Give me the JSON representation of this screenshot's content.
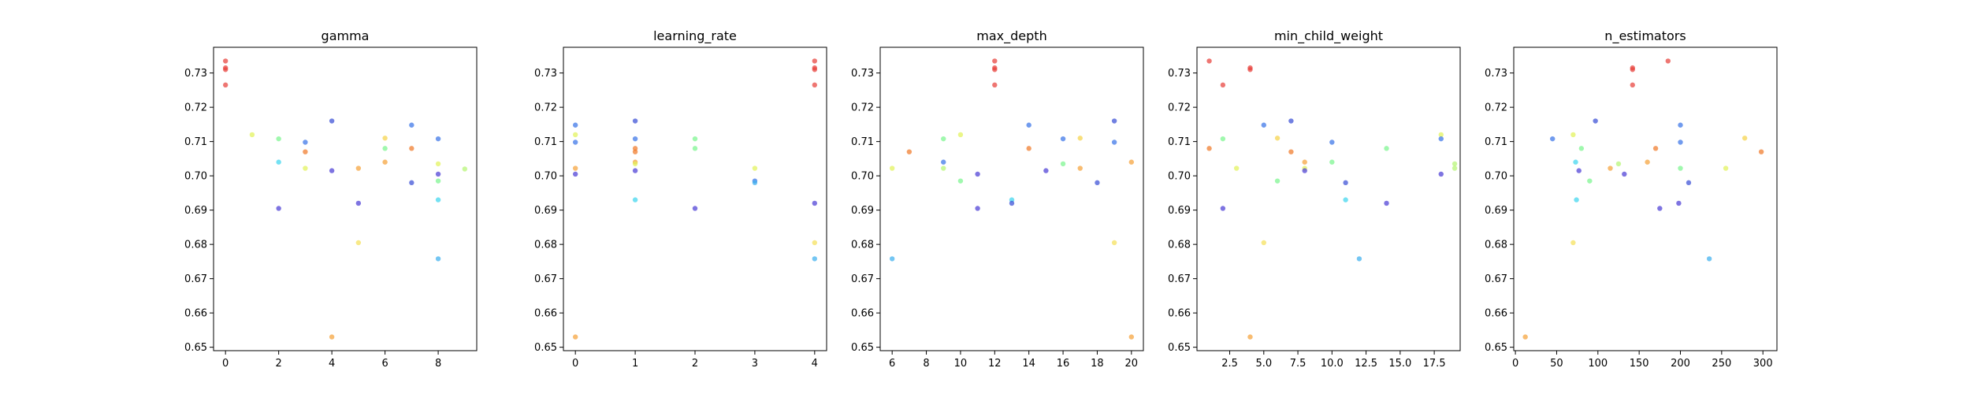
{
  "chart_data": [
    {
      "type": "scatter",
      "title": "gamma",
      "xlabel": "",
      "ylabel": "",
      "xlim": [
        -0.45,
        9.45
      ],
      "ylim": [
        0.649,
        0.7375
      ],
      "xticks": [
        0,
        2,
        4,
        6,
        8
      ],
      "xtick_labels": [
        "0",
        "2",
        "4",
        "6",
        "8"
      ],
      "yticks": [
        0.65,
        0.66,
        0.67,
        0.68,
        0.69,
        0.7,
        0.71,
        0.72,
        0.73
      ],
      "ytick_labels": [
        "0.65",
        "0.66",
        "0.67",
        "0.68",
        "0.69",
        "0.70",
        "0.71",
        "0.72",
        "0.73"
      ],
      "points": [
        {
          "x": 0,
          "y": 0.7335,
          "color": "#e8413c"
        },
        {
          "x": 0,
          "y": 0.7315,
          "color": "#e8413c"
        },
        {
          "x": 0,
          "y": 0.731,
          "color": "#e8413c"
        },
        {
          "x": 0,
          "y": 0.7265,
          "color": "#e8413c"
        },
        {
          "x": 1,
          "y": 0.712,
          "color": "#e2f35a"
        },
        {
          "x": 2,
          "y": 0.7108,
          "color": "#7cf58f"
        },
        {
          "x": 2,
          "y": 0.704,
          "color": "#3fd6ee"
        },
        {
          "x": 2,
          "y": 0.6905,
          "color": "#4c3fd6"
        },
        {
          "x": 3,
          "y": 0.7098,
          "color": "#3a74e8"
        },
        {
          "x": 3,
          "y": 0.707,
          "color": "#f07a2a"
        },
        {
          "x": 3,
          "y": 0.7022,
          "color": "#e2f35a"
        },
        {
          "x": 4,
          "y": 0.716,
          "color": "#3a4fd6"
        },
        {
          "x": 4,
          "y": 0.7015,
          "color": "#4c3fd6"
        },
        {
          "x": 4,
          "y": 0.653,
          "color": "#f5a23a"
        },
        {
          "x": 5,
          "y": 0.7022,
          "color": "#f5a23a"
        },
        {
          "x": 5,
          "y": 0.692,
          "color": "#4c3fd6"
        },
        {
          "x": 5,
          "y": 0.6805,
          "color": "#f5e05a"
        },
        {
          "x": 6,
          "y": 0.711,
          "color": "#f5d24a"
        },
        {
          "x": 6,
          "y": 0.708,
          "color": "#7cf58f"
        },
        {
          "x": 6,
          "y": 0.704,
          "color": "#f5a23a"
        },
        {
          "x": 7,
          "y": 0.7148,
          "color": "#3a74e8"
        },
        {
          "x": 7,
          "y": 0.708,
          "color": "#f07a2a"
        },
        {
          "x": 7,
          "y": 0.698,
          "color": "#3a4fd6"
        },
        {
          "x": 8,
          "y": 0.7108,
          "color": "#3a74e8"
        },
        {
          "x": 8,
          "y": 0.7035,
          "color": "#e2f35a"
        },
        {
          "x": 8,
          "y": 0.7005,
          "color": "#4c3fd6"
        },
        {
          "x": 8,
          "y": 0.6985,
          "color": "#7cf58f"
        },
        {
          "x": 8,
          "y": 0.693,
          "color": "#3fd6ee"
        },
        {
          "x": 8,
          "y": 0.6758,
          "color": "#3fb0ee"
        },
        {
          "x": 9,
          "y": 0.702,
          "color": "#b6f574"
        }
      ]
    },
    {
      "type": "scatter",
      "title": "learning_rate",
      "xlabel": "",
      "ylabel": "",
      "xlim": [
        -0.2,
        4.2
      ],
      "ylim": [
        0.649,
        0.7375
      ],
      "xticks": [
        0,
        1,
        2,
        3,
        4
      ],
      "xtick_labels": [
        "0",
        "1",
        "2",
        "3",
        "4"
      ],
      "yticks": [
        0.65,
        0.66,
        0.67,
        0.68,
        0.69,
        0.7,
        0.71,
        0.72,
        0.73
      ],
      "ytick_labels": [
        "0.65",
        "0.66",
        "0.67",
        "0.68",
        "0.69",
        "0.70",
        "0.71",
        "0.72",
        "0.73"
      ],
      "points": [
        {
          "x": 0,
          "y": 0.7148,
          "color": "#3a74e8"
        },
        {
          "x": 0,
          "y": 0.712,
          "color": "#e2f35a"
        },
        {
          "x": 0,
          "y": 0.7098,
          "color": "#3a74e8"
        },
        {
          "x": 0,
          "y": 0.7022,
          "color": "#f5a23a"
        },
        {
          "x": 0,
          "y": 0.7005,
          "color": "#4c3fd6"
        },
        {
          "x": 0,
          "y": 0.653,
          "color": "#f5a23a"
        },
        {
          "x": 1,
          "y": 0.716,
          "color": "#3a4fd6"
        },
        {
          "x": 1,
          "y": 0.7108,
          "color": "#3a74e8"
        },
        {
          "x": 1,
          "y": 0.708,
          "color": "#f07a2a"
        },
        {
          "x": 1,
          "y": 0.707,
          "color": "#f07a2a"
        },
        {
          "x": 1,
          "y": 0.704,
          "color": "#f5a23a"
        },
        {
          "x": 1,
          "y": 0.7035,
          "color": "#e2f35a"
        },
        {
          "x": 1,
          "y": 0.7015,
          "color": "#4c3fd6"
        },
        {
          "x": 1,
          "y": 0.693,
          "color": "#3fd6ee"
        },
        {
          "x": 2,
          "y": 0.7108,
          "color": "#7cf58f"
        },
        {
          "x": 2,
          "y": 0.708,
          "color": "#7cf58f"
        },
        {
          "x": 2,
          "y": 0.6905,
          "color": "#4c3fd6"
        },
        {
          "x": 3,
          "y": 0.7022,
          "color": "#e2f35a"
        },
        {
          "x": 3,
          "y": 0.6985,
          "color": "#3a74e8"
        },
        {
          "x": 3,
          "y": 0.698,
          "color": "#3fb0ee"
        },
        {
          "x": 4,
          "y": 0.7335,
          "color": "#e8413c"
        },
        {
          "x": 4,
          "y": 0.7315,
          "color": "#e8413c"
        },
        {
          "x": 4,
          "y": 0.731,
          "color": "#e8413c"
        },
        {
          "x": 4,
          "y": 0.7265,
          "color": "#e8413c"
        },
        {
          "x": 4,
          "y": 0.692,
          "color": "#4c3fd6"
        },
        {
          "x": 4,
          "y": 0.6805,
          "color": "#f5e05a"
        },
        {
          "x": 4,
          "y": 0.6758,
          "color": "#3fb0ee"
        }
      ]
    },
    {
      "type": "scatter",
      "title": "max_depth",
      "xlabel": "",
      "ylabel": "",
      "xlim": [
        5.3,
        20.7
      ],
      "ylim": [
        0.649,
        0.7375
      ],
      "xticks": [
        6,
        8,
        10,
        12,
        14,
        16,
        18,
        20
      ],
      "xtick_labels": [
        "6",
        "8",
        "10",
        "12",
        "14",
        "16",
        "18",
        "20"
      ],
      "yticks": [
        0.65,
        0.66,
        0.67,
        0.68,
        0.69,
        0.7,
        0.71,
        0.72,
        0.73
      ],
      "ytick_labels": [
        "0.65",
        "0.66",
        "0.67",
        "0.68",
        "0.69",
        "0.70",
        "0.71",
        "0.72",
        "0.73"
      ],
      "points": [
        {
          "x": 6,
          "y": 0.7022,
          "color": "#e2f35a"
        },
        {
          "x": 6,
          "y": 0.6758,
          "color": "#3fb0ee"
        },
        {
          "x": 7,
          "y": 0.707,
          "color": "#f07a2a"
        },
        {
          "x": 9,
          "y": 0.7108,
          "color": "#7cf58f"
        },
        {
          "x": 9,
          "y": 0.704,
          "color": "#3a74e8"
        },
        {
          "x": 9,
          "y": 0.7022,
          "color": "#b6f574"
        },
        {
          "x": 10,
          "y": 0.712,
          "color": "#e2f35a"
        },
        {
          "x": 10,
          "y": 0.6985,
          "color": "#7cf58f"
        },
        {
          "x": 11,
          "y": 0.7005,
          "color": "#4c3fd6"
        },
        {
          "x": 11,
          "y": 0.6905,
          "color": "#4c3fd6"
        },
        {
          "x": 12,
          "y": 0.7335,
          "color": "#e8413c"
        },
        {
          "x": 12,
          "y": 0.7315,
          "color": "#e8413c"
        },
        {
          "x": 12,
          "y": 0.731,
          "color": "#e8413c"
        },
        {
          "x": 12,
          "y": 0.7265,
          "color": "#e8413c"
        },
        {
          "x": 13,
          "y": 0.693,
          "color": "#3fd6ee"
        },
        {
          "x": 13,
          "y": 0.692,
          "color": "#3a4fd6"
        },
        {
          "x": 14,
          "y": 0.7148,
          "color": "#3a74e8"
        },
        {
          "x": 14,
          "y": 0.708,
          "color": "#f07a2a"
        },
        {
          "x": 15,
          "y": 0.7015,
          "color": "#4c3fd6"
        },
        {
          "x": 16,
          "y": 0.7108,
          "color": "#3a74e8"
        },
        {
          "x": 16,
          "y": 0.7035,
          "color": "#7cf58f"
        },
        {
          "x": 17,
          "y": 0.711,
          "color": "#f5d24a"
        },
        {
          "x": 17,
          "y": 0.7022,
          "color": "#f5a23a"
        },
        {
          "x": 18,
          "y": 0.698,
          "color": "#3a4fd6"
        },
        {
          "x": 19,
          "y": 0.716,
          "color": "#3a4fd6"
        },
        {
          "x": 19,
          "y": 0.7098,
          "color": "#3a74e8"
        },
        {
          "x": 19,
          "y": 0.6805,
          "color": "#f5e05a"
        },
        {
          "x": 20,
          "y": 0.704,
          "color": "#f5a23a"
        },
        {
          "x": 20,
          "y": 0.653,
          "color": "#f5a23a"
        }
      ]
    },
    {
      "type": "scatter",
      "title": "min_child_weight",
      "xlabel": "",
      "ylabel": "",
      "xlim": [
        0.1,
        19.4
      ],
      "ylim": [
        0.649,
        0.7375
      ],
      "xticks": [
        2.5,
        5.0,
        7.5,
        10.0,
        12.5,
        15.0,
        17.5
      ],
      "xtick_labels": [
        "2.5",
        "5.0",
        "7.5",
        "10.0",
        "12.5",
        "15.0",
        "17.5"
      ],
      "yticks": [
        0.65,
        0.66,
        0.67,
        0.68,
        0.69,
        0.7,
        0.71,
        0.72,
        0.73
      ],
      "ytick_labels": [
        "0.65",
        "0.66",
        "0.67",
        "0.68",
        "0.69",
        "0.70",
        "0.71",
        "0.72",
        "0.73"
      ],
      "points": [
        {
          "x": 1,
          "y": 0.7335,
          "color": "#e8413c"
        },
        {
          "x": 1,
          "y": 0.708,
          "color": "#f07a2a"
        },
        {
          "x": 2,
          "y": 0.7265,
          "color": "#e8413c"
        },
        {
          "x": 2,
          "y": 0.7108,
          "color": "#7cf58f"
        },
        {
          "x": 2,
          "y": 0.6905,
          "color": "#4c3fd6"
        },
        {
          "x": 3,
          "y": 0.7022,
          "color": "#e2f35a"
        },
        {
          "x": 4,
          "y": 0.7315,
          "color": "#e8413c"
        },
        {
          "x": 4,
          "y": 0.731,
          "color": "#e8413c"
        },
        {
          "x": 4,
          "y": 0.653,
          "color": "#f5a23a"
        },
        {
          "x": 5,
          "y": 0.7148,
          "color": "#3a74e8"
        },
        {
          "x": 5,
          "y": 0.6805,
          "color": "#f5e05a"
        },
        {
          "x": 6,
          "y": 0.711,
          "color": "#f5d24a"
        },
        {
          "x": 6,
          "y": 0.6985,
          "color": "#7cf58f"
        },
        {
          "x": 7,
          "y": 0.716,
          "color": "#3a4fd6"
        },
        {
          "x": 7,
          "y": 0.707,
          "color": "#f07a2a"
        },
        {
          "x": 8,
          "y": 0.704,
          "color": "#f5a23a"
        },
        {
          "x": 8,
          "y": 0.7022,
          "color": "#e2f35a"
        },
        {
          "x": 8,
          "y": 0.7015,
          "color": "#4c3fd6"
        },
        {
          "x": 10,
          "y": 0.7098,
          "color": "#3a74e8"
        },
        {
          "x": 10,
          "y": 0.704,
          "color": "#7cf58f"
        },
        {
          "x": 11,
          "y": 0.698,
          "color": "#3a4fd6"
        },
        {
          "x": 11,
          "y": 0.693,
          "color": "#3fd6ee"
        },
        {
          "x": 12,
          "y": 0.6758,
          "color": "#3fb0ee"
        },
        {
          "x": 14,
          "y": 0.708,
          "color": "#7cf58f"
        },
        {
          "x": 14,
          "y": 0.692,
          "color": "#4c3fd6"
        },
        {
          "x": 18,
          "y": 0.712,
          "color": "#e2f35a"
        },
        {
          "x": 18,
          "y": 0.7108,
          "color": "#3a74e8"
        },
        {
          "x": 18,
          "y": 0.7005,
          "color": "#4c3fd6"
        },
        {
          "x": 19,
          "y": 0.7035,
          "color": "#b6f574"
        },
        {
          "x": 19,
          "y": 0.7022,
          "color": "#b6f574"
        }
      ]
    },
    {
      "type": "scatter",
      "title": "n_estimators",
      "xlabel": "",
      "ylabel": "",
      "xlim": [
        -2,
        317
      ],
      "ylim": [
        0.649,
        0.7375
      ],
      "xticks": [
        0,
        50,
        100,
        150,
        200,
        250,
        300
      ],
      "xtick_labels": [
        "0",
        "50",
        "100",
        "150",
        "200",
        "250",
        "300"
      ],
      "yticks": [
        0.65,
        0.66,
        0.67,
        0.68,
        0.69,
        0.7,
        0.71,
        0.72,
        0.73
      ],
      "ytick_labels": [
        "0.65",
        "0.66",
        "0.67",
        "0.68",
        "0.69",
        "0.70",
        "0.71",
        "0.72",
        "0.73"
      ],
      "points": [
        {
          "x": 12,
          "y": 0.653,
          "color": "#f5a23a"
        },
        {
          "x": 45,
          "y": 0.7108,
          "color": "#3a74e8"
        },
        {
          "x": 70,
          "y": 0.712,
          "color": "#e2f35a"
        },
        {
          "x": 70,
          "y": 0.6805,
          "color": "#f5e05a"
        },
        {
          "x": 73,
          "y": 0.704,
          "color": "#3fd6ee"
        },
        {
          "x": 74,
          "y": 0.693,
          "color": "#3fd6ee"
        },
        {
          "x": 77,
          "y": 0.7015,
          "color": "#4c3fd6"
        },
        {
          "x": 80,
          "y": 0.708,
          "color": "#7cf58f"
        },
        {
          "x": 90,
          "y": 0.6985,
          "color": "#7cf58f"
        },
        {
          "x": 97,
          "y": 0.716,
          "color": "#3a4fd6"
        },
        {
          "x": 115,
          "y": 0.7022,
          "color": "#f5a23a"
        },
        {
          "x": 125,
          "y": 0.7035,
          "color": "#b6f574"
        },
        {
          "x": 132,
          "y": 0.7005,
          "color": "#4c3fd6"
        },
        {
          "x": 142,
          "y": 0.7315,
          "color": "#e8413c"
        },
        {
          "x": 142,
          "y": 0.731,
          "color": "#e8413c"
        },
        {
          "x": 142,
          "y": 0.7265,
          "color": "#e8413c"
        },
        {
          "x": 160,
          "y": 0.704,
          "color": "#f5a23a"
        },
        {
          "x": 170,
          "y": 0.708,
          "color": "#f07a2a"
        },
        {
          "x": 175,
          "y": 0.6905,
          "color": "#4c3fd6"
        },
        {
          "x": 185,
          "y": 0.7335,
          "color": "#e8413c"
        },
        {
          "x": 198,
          "y": 0.692,
          "color": "#4c3fd6"
        },
        {
          "x": 200,
          "y": 0.7148,
          "color": "#3a74e8"
        },
        {
          "x": 200,
          "y": 0.7098,
          "color": "#3a74e8"
        },
        {
          "x": 200,
          "y": 0.7022,
          "color": "#7cf58f"
        },
        {
          "x": 210,
          "y": 0.698,
          "color": "#3a4fd6"
        },
        {
          "x": 235,
          "y": 0.6758,
          "color": "#3fb0ee"
        },
        {
          "x": 255,
          "y": 0.7022,
          "color": "#e2f35a"
        },
        {
          "x": 278,
          "y": 0.711,
          "color": "#f5d24a"
        },
        {
          "x": 298,
          "y": 0.707,
          "color": "#f07a2a"
        }
      ]
    }
  ]
}
